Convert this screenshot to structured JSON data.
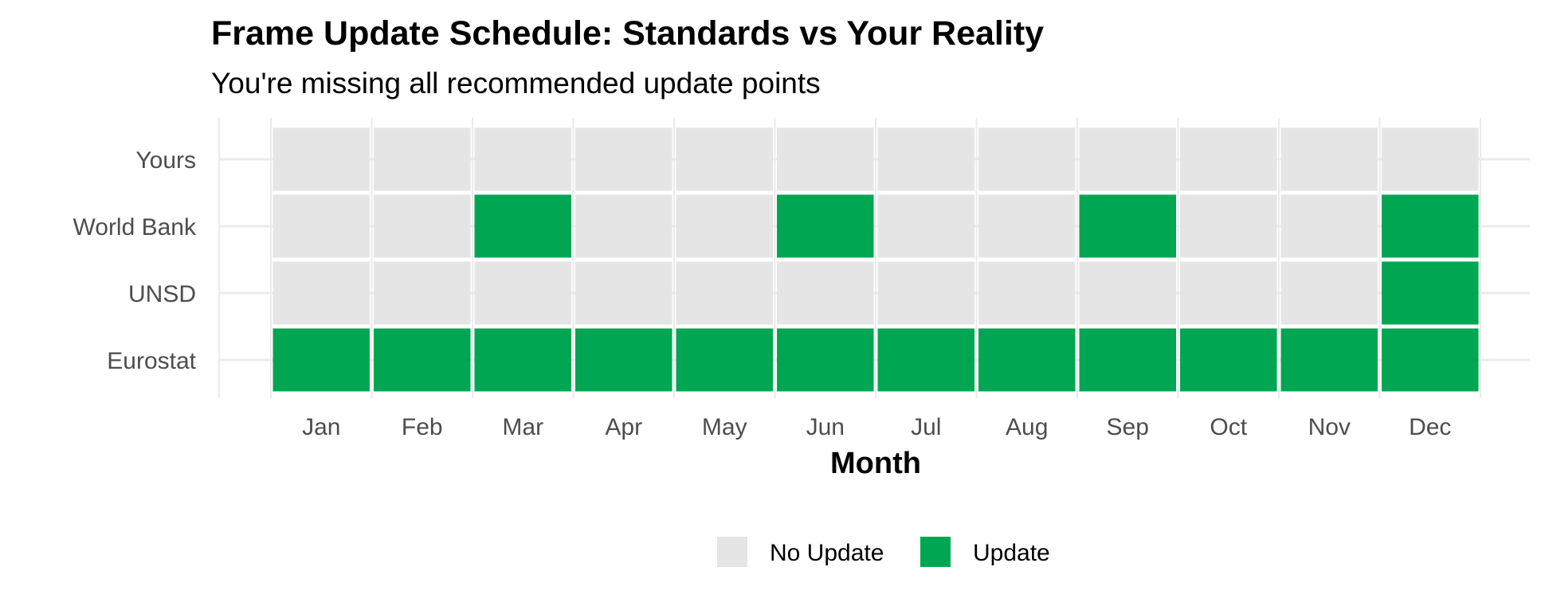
{
  "chart_data": {
    "type": "heatmap",
    "title": "Frame Update Schedule: Standards vs Your Reality",
    "subtitle": "You're missing all recommended update points",
    "xlabel": "Month",
    "ylabel": "",
    "x": [
      "Jan",
      "Feb",
      "Mar",
      "Apr",
      "May",
      "Jun",
      "Jul",
      "Aug",
      "Sep",
      "Oct",
      "Nov",
      "Dec"
    ],
    "y": [
      "Yours",
      "World Bank",
      "UNSD",
      "Eurostat"
    ],
    "values": [
      [
        "No Update",
        "No Update",
        "No Update",
        "No Update",
        "No Update",
        "No Update",
        "No Update",
        "No Update",
        "No Update",
        "No Update",
        "No Update",
        "No Update"
      ],
      [
        "No Update",
        "No Update",
        "Update",
        "No Update",
        "No Update",
        "Update",
        "No Update",
        "No Update",
        "Update",
        "No Update",
        "No Update",
        "Update"
      ],
      [
        "No Update",
        "No Update",
        "No Update",
        "No Update",
        "No Update",
        "No Update",
        "No Update",
        "No Update",
        "No Update",
        "No Update",
        "No Update",
        "Update"
      ],
      [
        "Update",
        "Update",
        "Update",
        "Update",
        "Update",
        "Update",
        "Update",
        "Update",
        "Update",
        "Update",
        "Update",
        "Update"
      ]
    ],
    "legend": {
      "position": "bottom",
      "entries": [
        {
          "label": "No Update",
          "color": "#e5e5e5"
        },
        {
          "label": "Update",
          "color": "#00a651"
        }
      ]
    },
    "grid": true
  },
  "colors": {
    "no_update": "#e5e5e5",
    "update": "#00a651",
    "grid": "#ebebeb"
  }
}
